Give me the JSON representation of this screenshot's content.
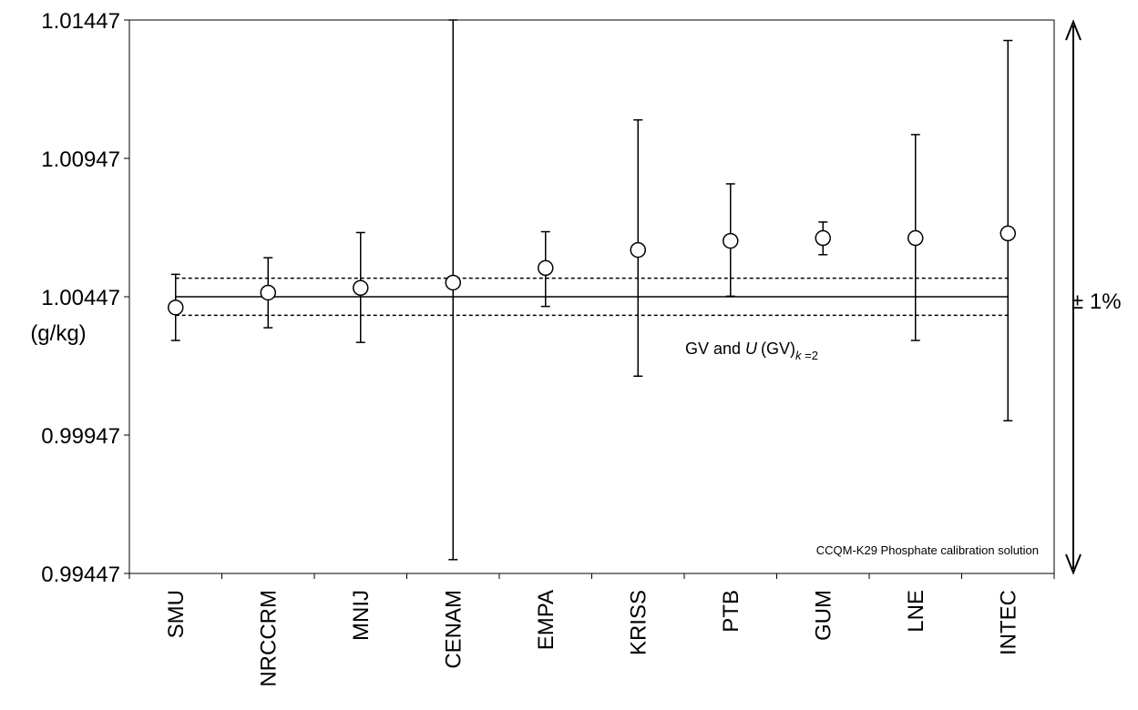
{
  "chart_data": {
    "type": "scatter",
    "title": "",
    "note": "CCQM-K29 Phosphate calibration solution",
    "xlabel": "",
    "ylabel": "(g/kg)",
    "ylim": [
      0.99447,
      1.01447
    ],
    "yticks": [
      "1.01447",
      "1.00947",
      "1.00447",
      "0.99947",
      "0.99447"
    ],
    "ytick_values": [
      1.01447,
      1.00947,
      1.00447,
      0.99947,
      0.99447
    ],
    "categories": [
      "SMU",
      "NRCCRM",
      "MNIJ",
      "CENAM",
      "EMPA",
      "KRISS",
      "PTB",
      "GUM",
      "LNE",
      "INTEC"
    ],
    "values": [
      1.00408,
      1.00462,
      1.00479,
      1.00498,
      1.00551,
      1.00616,
      1.00649,
      1.00659,
      1.00659,
      1.00676
    ],
    "err_low": [
      1.00289,
      1.00335,
      1.00282,
      0.99497,
      1.00412,
      1.0016,
      1.00449,
      1.00599,
      1.00289,
      0.99999
    ],
    "err_high": [
      1.00528,
      1.00588,
      1.00679,
      1.01447,
      1.00682,
      1.01086,
      1.00855,
      1.00717,
      1.01033,
      1.01373
    ],
    "reference": {
      "label_prefix": "GV and ",
      "label_u": "U",
      "label_gv": "(GV)",
      "label_sub": "k",
      "label_sub_rest": " =2",
      "value": 1.00447,
      "lower": 1.0038,
      "upper": 1.00514
    },
    "range_annotation": "± 1%",
    "grid": false
  }
}
